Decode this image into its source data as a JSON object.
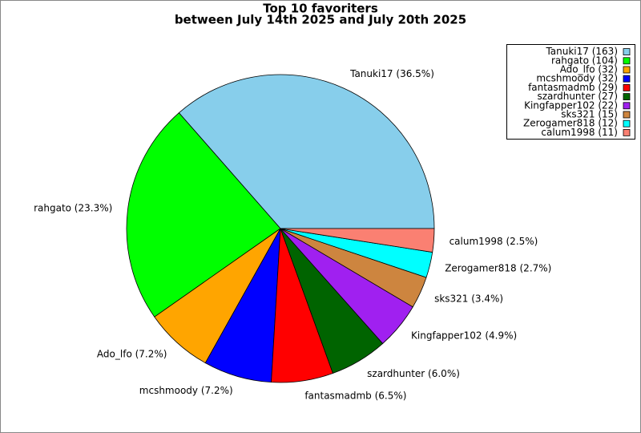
{
  "chart_data": {
    "type": "pie",
    "title": [
      "Top 10 favoriters",
      "between July 14th 2025 and July 20th 2025"
    ],
    "categories": [
      "Tanuki17",
      "rahgato",
      "Ado_lfo",
      "mcshmoody",
      "fantasmadmb",
      "szardhunter",
      "Kingfapper102",
      "sks321",
      "Zerogamer818",
      "calum1998"
    ],
    "values": [
      163,
      104,
      32,
      32,
      29,
      27,
      22,
      15,
      12,
      11
    ],
    "slice_labels": [
      "Tanuki17 (36.5%)",
      "rahgato (23.3%)",
      "Ado_lfo (7.2%)",
      "mcshmoody (7.2%)",
      "fantasmadmb (6.5%)",
      "szardhunter (6.0%)",
      "Kingfapper102 (4.9%)",
      "sks321 (3.4%)",
      "Zerogamer818 (2.7%)",
      "calum1998 (2.5%)"
    ],
    "legend_labels": [
      "Tanuki17 (163)",
      "rahgato (104)",
      "Ado_lfo (32)",
      "mcshmoody (32)",
      "fantasmadmb (29)",
      "szardhunter (27)",
      "Kingfapper102 (22)",
      "sks321 (15)",
      "Zerogamer818 (12)",
      "calum1998 (11)"
    ],
    "colors": [
      "#87ceeb",
      "#00ff00",
      "#ffa500",
      "#0000ff",
      "#ff0000",
      "#006400",
      "#a020f0",
      "#cd853f",
      "#00ffff",
      "#fa8072"
    ],
    "legend_position": "upper right"
  }
}
